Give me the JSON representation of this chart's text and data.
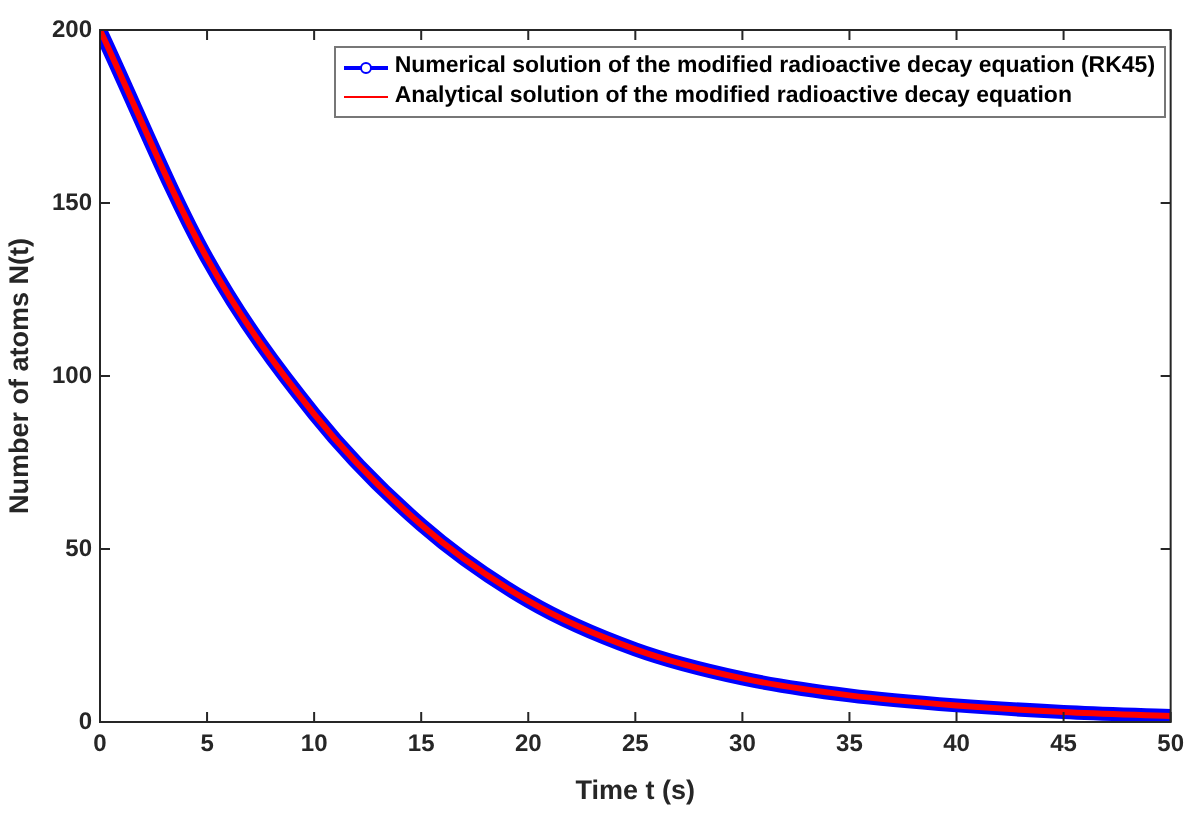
{
  "chart_data": {
    "type": "line",
    "xlabel": "Time t (s)",
    "ylabel": "Number of atoms N(t)",
    "x": [
      0,
      5,
      10,
      15,
      20,
      25,
      30,
      35,
      40,
      45,
      50
    ],
    "series": [
      {
        "name": "Numerical solution of the modified radioactive decay equation (RK45)",
        "color": "#0000ff",
        "marker": "circle",
        "values": [
          200,
          134,
          89,
          57,
          35,
          21,
          12.6,
          7.7,
          4.8,
          2.9,
          1.7
        ]
      },
      {
        "name": "Analytical solution of the modified radioactive decay equation",
        "color": "#ff0000",
        "marker": "none",
        "values": [
          200,
          134,
          89,
          57,
          35,
          21,
          12.6,
          7.7,
          4.8,
          2.9,
          1.7
        ]
      }
    ],
    "xlim": [
      0,
      50
    ],
    "xticks": [
      0,
      5,
      10,
      15,
      20,
      25,
      30,
      35,
      40,
      45,
      50
    ],
    "ylim": [
      0,
      200
    ],
    "yticks": [
      0,
      50,
      100,
      150,
      200
    ],
    "grid": false,
    "legend": "top right",
    "line_style": "solid"
  }
}
